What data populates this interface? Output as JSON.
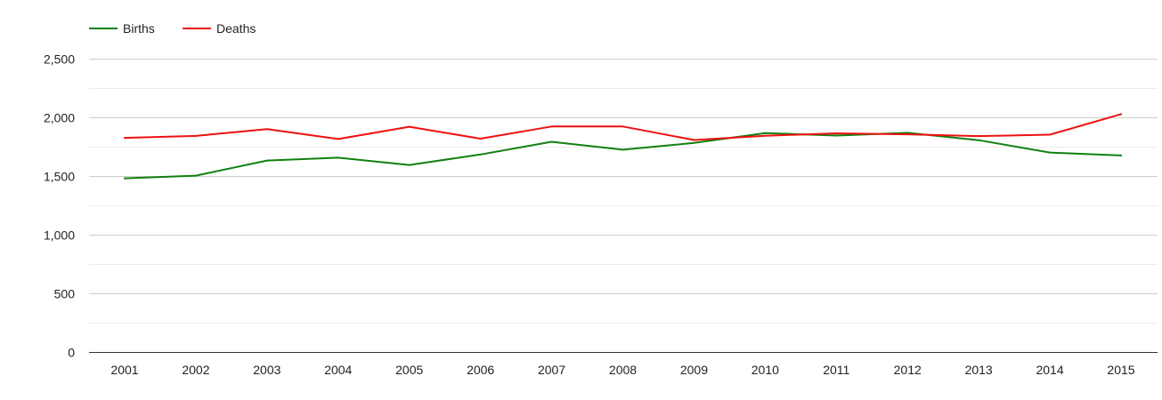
{
  "chart_data": {
    "type": "line",
    "title": "",
    "xlabel": "",
    "ylabel": "",
    "categories": [
      "2001",
      "2002",
      "2003",
      "2004",
      "2005",
      "2006",
      "2007",
      "2008",
      "2009",
      "2010",
      "2011",
      "2012",
      "2013",
      "2014",
      "2015"
    ],
    "series": [
      {
        "name": "Births",
        "color": "#108010",
        "values": [
          1480,
          1503,
          1632,
          1656,
          1594,
          1683,
          1792,
          1724,
          1782,
          1866,
          1845,
          1868,
          1805,
          1700,
          1675
        ]
      },
      {
        "name": "Deaths",
        "color": "#ee1111",
        "values": [
          1825,
          1842,
          1900,
          1815,
          1920,
          1818,
          1922,
          1922,
          1807,
          1843,
          1864,
          1855,
          1840,
          1852,
          2027
        ]
      }
    ],
    "ylim": [
      0,
      2500
    ],
    "yticks": [
      0,
      500,
      1000,
      1500,
      2000,
      2500
    ],
    "ytick_labels": [
      "0",
      "500",
      "1,000",
      "1,500",
      "2,000",
      "2,500"
    ],
    "grid": true,
    "legend_position": "top-left"
  }
}
